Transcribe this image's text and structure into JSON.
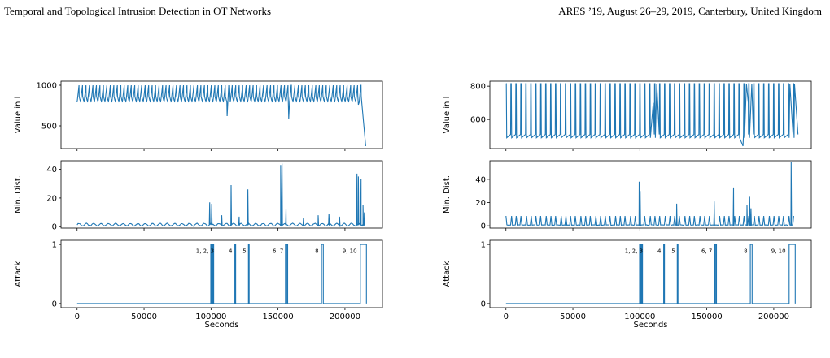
{
  "header": {
    "left_title": "Temporal and Topological Intrusion Detection in OT Networks",
    "right_venue": "ARES ’19, August 26–29, 2019, Canterbury, United Kingdom"
  },
  "colors": {
    "series": "#1f77b4"
  },
  "chart_data": [
    {
      "type": "line",
      "xlabel": "Seconds",
      "xlim": [
        -12000,
        228000
      ],
      "xticks": [
        0,
        50000,
        100000,
        150000,
        200000
      ],
      "xtick_labels": [
        "0",
        "50000",
        "100000",
        "150000",
        "200000"
      ],
      "subplots": [
        {
          "ylabel": "Value in l",
          "ylim": [
            220,
            1050
          ],
          "yticks": [
            500,
            1000
          ],
          "ytick_labels": [
            "500",
            "1000"
          ],
          "series": [
            {
              "kind": "sawtooth",
              "x_range": [
                0,
                211000
              ],
              "period": 2600,
              "low": 790,
              "high": 1000,
              "dips": [
                [
                  112000,
                  620
                ],
                [
                  158000,
                  590
                ],
                [
                  210000,
                  760
                ]
              ],
              "tail": [
                [
                  212000,
                  1000
                ],
                [
                  215500,
                  250
                ]
              ]
            }
          ]
        },
        {
          "ylabel": "Min. Dist.",
          "ylim": [
            -1,
            46
          ],
          "yticks": [
            0,
            20,
            40
          ],
          "ytick_labels": [
            "0",
            "20",
            "40"
          ],
          "series": [
            {
              "kind": "noise",
              "x_range": [
                0,
                215000
              ],
              "period": 5500,
              "base": 1.2,
              "amp": 0.9,
              "spikes": [
                [
                  99000,
                  17
                ],
                [
                  100500,
                  16
                ],
                [
                  108000,
                  8
                ],
                [
                  115000,
                  29
                ],
                [
                  121000,
                  7
                ],
                [
                  127500,
                  26
                ],
                [
                  152000,
                  43
                ],
                [
                  153000,
                  44
                ],
                [
                  156000,
                  12
                ],
                [
                  169000,
                  6
                ],
                [
                  180000,
                  8
                ],
                [
                  188000,
                  9
                ],
                [
                  196000,
                  7
                ],
                [
                  209000,
                  37
                ],
                [
                  210000,
                  35
                ],
                [
                  212000,
                  33
                ],
                [
                  213500,
                  15
                ],
                [
                  214500,
                  10
                ]
              ]
            }
          ]
        },
        {
          "ylabel": "Attack",
          "ylim": [
            -0.07,
            1.07
          ],
          "yticks": [
            0,
            1
          ],
          "ytick_labels": [
            "0",
            "1"
          ],
          "series": [
            {
              "kind": "steps",
              "x_range": [
                0,
                216000
              ],
              "pulses": [
                [
                  99800,
                  100200
                ],
                [
                  100700,
                  101100
                ],
                [
                  101500,
                  102000
                ],
                [
                  117800,
                  118400
                ],
                [
                  127900,
                  128500
                ],
                [
                  155600,
                  156000
                ],
                [
                  156500,
                  157200
                ],
                [
                  182500,
                  183800
                ],
                [
                  211500,
                  216000
                ]
              ]
            }
          ],
          "annotations": [
            {
              "text": "1, 2, 3",
              "x": 95500,
              "y": 0.86
            },
            {
              "text": "4",
              "x": 114500,
              "y": 0.86
            },
            {
              "text": "5",
              "x": 125000,
              "y": 0.86
            },
            {
              "text": "6, 7",
              "x": 150000,
              "y": 0.86
            },
            {
              "text": "8",
              "x": 179000,
              "y": 0.86
            },
            {
              "text": "9, 10",
              "x": 203500,
              "y": 0.86
            }
          ]
        }
      ]
    },
    {
      "type": "line",
      "xlabel": "Seconds",
      "xlim": [
        -12000,
        228000
      ],
      "xticks": [
        0,
        50000,
        100000,
        150000,
        200000
      ],
      "xtick_labels": [
        "0",
        "50000",
        "100000",
        "150000",
        "200000"
      ],
      "subplots": [
        {
          "ylabel": "Value in l",
          "ylim": [
            425,
            830
          ],
          "yticks": [
            600,
            800
          ],
          "ytick_labels": [
            "600",
            "800"
          ],
          "series": [
            {
              "kind": "sawtooth_up",
              "x_range": [
                0,
                215000
              ],
              "period": 3700,
              "low": 490,
              "high": 815,
              "dips": [
                [
                  177000,
                  440
                ],
                [
                  181000,
                  700
                ],
                [
                  110000,
                  700
                ]
              ],
              "tail": [
                [
                  212000,
                  815
                ],
                [
                  215500,
                  815
                ]
              ]
            }
          ]
        },
        {
          "ylabel": "Min. Dist.",
          "ylim": [
            -2,
            56
          ],
          "yticks": [
            0,
            20,
            40
          ],
          "ytick_labels": [
            "0",
            "20",
            "40"
          ],
          "series": [
            {
              "kind": "periodic",
              "x_range": [
                0,
                215000
              ],
              "period": 3700,
              "base": 0.5,
              "amp": 8,
              "spikes": [
                [
                  99500,
                  38
                ],
                [
                  100200,
                  30
                ],
                [
                  127500,
                  19
                ],
                [
                  155500,
                  21
                ],
                [
                  170000,
                  33
                ],
                [
                  180000,
                  18
                ],
                [
                  182000,
                  25
                ],
                [
                  183000,
                  15
                ],
                [
                  213000,
                  55
                ]
              ]
            }
          ]
        },
        {
          "ylabel": "Attack",
          "ylim": [
            -0.07,
            1.07
          ],
          "yticks": [
            0,
            1
          ],
          "ytick_labels": [
            "0",
            "1"
          ],
          "series": [
            {
              "kind": "steps",
              "x_range": [
                0,
                216000
              ],
              "pulses": [
                [
                  99800,
                  100200
                ],
                [
                  100700,
                  101100
                ],
                [
                  101500,
                  102000
                ],
                [
                  117800,
                  118400
                ],
                [
                  127900,
                  128500
                ],
                [
                  155600,
                  156000
                ],
                [
                  156500,
                  157200
                ],
                [
                  182500,
                  183800
                ],
                [
                  211500,
                  216000
                ]
              ]
            }
          ],
          "annotations": [
            {
              "text": "1, 2, 3",
              "x": 95500,
              "y": 0.86
            },
            {
              "text": "4",
              "x": 114500,
              "y": 0.86
            },
            {
              "text": "5",
              "x": 125000,
              "y": 0.86
            },
            {
              "text": "6, 7",
              "x": 150000,
              "y": 0.86
            },
            {
              "text": "8",
              "x": 179000,
              "y": 0.86
            },
            {
              "text": "9, 10",
              "x": 203500,
              "y": 0.86
            }
          ]
        }
      ]
    }
  ]
}
